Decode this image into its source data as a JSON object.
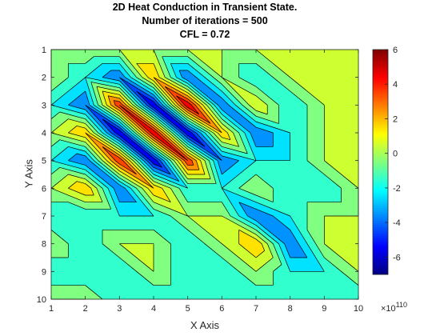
{
  "chart_data": {
    "type": "heatmap",
    "subtype": "filled-contour",
    "title": [
      "2D  Heat Conduction in Transient State.",
      "Number of iterations = 500",
      "CFL = 0.72"
    ],
    "xlabel": "X Axis",
    "ylabel": "Y Axis",
    "x": [
      1,
      2,
      3,
      4,
      5,
      6,
      7,
      8,
      9,
      10
    ],
    "y": [
      1,
      2,
      3,
      4,
      5,
      6,
      7,
      8,
      9,
      10
    ],
    "xlim": [
      1,
      10
    ],
    "ylim": [
      1,
      10
    ],
    "y_direction": "reverse",
    "colormap": "jet",
    "colorbar": {
      "ticks": [
        -6,
        -4,
        -2,
        0,
        2,
        4,
        6
      ],
      "range": [
        -7,
        6
      ],
      "exponent_label": "×10",
      "exponent_value": "110"
    },
    "contour_levels": [
      -7,
      -6,
      -5,
      -4,
      -3,
      -2,
      -1,
      0,
      1,
      2,
      3,
      4,
      5,
      6
    ],
    "z": [
      [
        0,
        0,
        0,
        0,
        0,
        0,
        0,
        0,
        0,
        0
      ],
      [
        0,
        -2,
        -4,
        2,
        -4,
        0,
        -2,
        0,
        0,
        0
      ],
      [
        -2,
        -4,
        4,
        -6,
        5,
        -4,
        1,
        -2,
        0,
        0
      ],
      [
        0,
        2,
        -6,
        5,
        -6,
        2,
        -4,
        -2,
        0,
        0
      ],
      [
        -2,
        -4,
        4,
        -6,
        4,
        -4,
        -2,
        -2,
        0,
        0
      ],
      [
        0,
        2,
        -4,
        2,
        -2,
        -2,
        0,
        -2,
        -2,
        0
      ],
      [
        -2,
        -2,
        -2,
        -2,
        0,
        0,
        -4,
        -2,
        0,
        0
      ],
      [
        0,
        -2,
        0,
        0,
        -2,
        0,
        2,
        -4,
        0,
        0
      ],
      [
        -2,
        -2,
        -2,
        0,
        -2,
        -2,
        0,
        -2,
        -2,
        0
      ],
      [
        0,
        0,
        -2,
        -2,
        -2,
        -2,
        -2,
        -2,
        -2,
        -2
      ]
    ],
    "grid": false,
    "colors": {
      "axes_bg": "#ffffff",
      "contour_line": "#000000"
    }
  }
}
